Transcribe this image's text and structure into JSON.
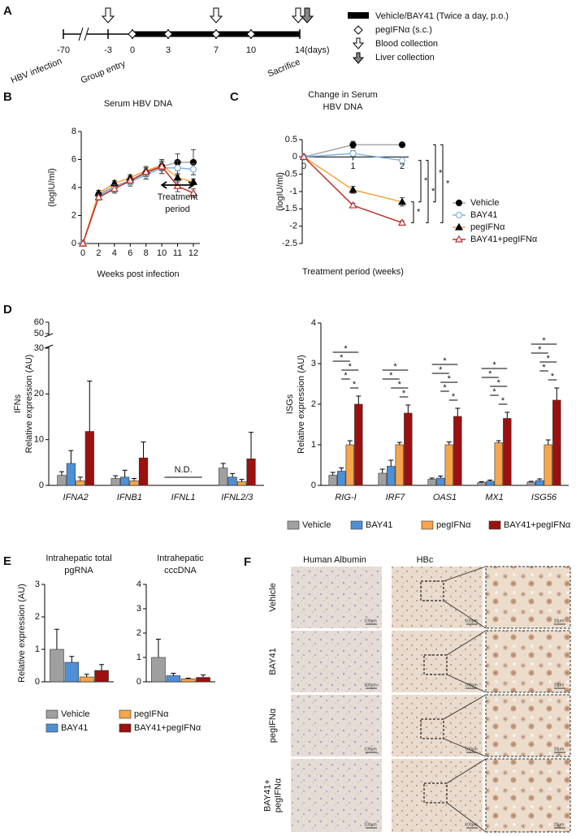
{
  "timeline": {
    "label": "A",
    "ticks": [
      -70,
      -3,
      0,
      3,
      7,
      10,
      14
    ],
    "unit": "(days)",
    "events": [
      "HBV infection",
      "Group entry",
      "Sacrifice"
    ],
    "legend": [
      "Vehicle/BAY41 (Twice a day, p.o.)",
      "pegIFNα (s.c.)",
      "Blood collection",
      "Liver collection"
    ]
  },
  "chart_data": [
    {
      "type": "line",
      "label": "B",
      "title": [
        "Serum HBV DNA"
      ],
      "y_label": [
        "(logIU/ml)"
      ],
      "x_label": "Weeks post infection",
      "categories": [
        "0",
        "2",
        "4",
        "6",
        "8",
        "10",
        "11",
        "12"
      ],
      "ylim": [
        0,
        8
      ],
      "yticks": [
        0,
        2,
        4,
        6,
        8
      ],
      "annotation": [
        "Treatment",
        "period"
      ],
      "series": [
        {
          "color": "#a6a6a6",
          "marker": "filled-circle",
          "values": [
            0,
            3.5,
            4.1,
            4.5,
            5.0,
            5.5,
            5.8,
            5.8
          ],
          "errors": [
            0,
            0.3,
            0.3,
            0.3,
            0.4,
            0.5,
            0.6,
            0.9
          ]
        },
        {
          "color": "#7fb2e5",
          "marker": "open-circle",
          "values": [
            0,
            3.4,
            4.0,
            4.4,
            4.9,
            5.4,
            5.4,
            5.3
          ],
          "errors": [
            0,
            0.3,
            0.3,
            0.3,
            0.3,
            0.4,
            0.5,
            0.4
          ]
        },
        {
          "color": "#f3a540",
          "marker": "filled-triangle",
          "values": [
            0,
            3.6,
            4.3,
            4.7,
            5.2,
            5.6,
            4.7,
            4.4
          ],
          "errors": [
            0,
            0.2,
            0.2,
            0.2,
            0.3,
            0.3,
            0.3,
            0.2
          ]
        },
        {
          "color": "#c0302a",
          "marker": "open-triangle",
          "values": [
            0,
            3.3,
            3.9,
            4.5,
            5.1,
            5.5,
            4.1,
            3.6
          ],
          "errors": [
            0,
            0.2,
            0.3,
            0.2,
            0.3,
            0.3,
            0.4,
            0.3
          ]
        }
      ]
    },
    {
      "type": "line",
      "label": "C",
      "title": [
        "Change in Serum",
        "HBV DNA"
      ],
      "y_label": [
        "(logIU/ml)"
      ],
      "x_label": "Treatment period (weeks)",
      "categories": [
        "0",
        "1",
        "2"
      ],
      "ylim": [
        -2.5,
        0.5
      ],
      "yticks": [
        -2.5,
        -2,
        -1.5,
        -1,
        -0.5,
        0,
        0.5
      ],
      "legend": "right",
      "significance": [
        {
          "pair": [
            2,
            3
          ],
          "label": "*"
        },
        {
          "pair": [
            1,
            2
          ],
          "label": "*"
        },
        {
          "pair": [
            1,
            3
          ],
          "label": "*"
        },
        {
          "pair": [
            0,
            2
          ],
          "label": "*"
        },
        {
          "pair": [
            0,
            3
          ],
          "label": "*"
        }
      ],
      "series": [
        {
          "name": "Vehicle",
          "color": "#a6a6a6",
          "marker": "filled-circle",
          "values": [
            0,
            0.35,
            0.35
          ],
          "errors": [
            0,
            0.1,
            0.06
          ]
        },
        {
          "name": "BAY41",
          "color": "#7fb2e5",
          "marker": "open-circle",
          "values": [
            0,
            0.1,
            -0.1
          ],
          "errors": [
            0,
            0.08,
            0.1
          ]
        },
        {
          "name": "pegIFNα",
          "color": "#f3a540",
          "marker": "filled-triangle",
          "values": [
            0,
            -0.95,
            -1.3
          ],
          "errors": [
            0,
            0.1,
            0.12
          ]
        },
        {
          "name": "BAY41+pegIFNα",
          "color": "#c0302a",
          "marker": "open-triangle",
          "values": [
            0,
            -1.4,
            -1.9
          ],
          "errors": [
            0,
            0.06,
            0.05
          ]
        }
      ]
    },
    {
      "type": "bar",
      "label": "D",
      "y_label": [
        "IFNs",
        "Relative expression (AU)"
      ],
      "categories": [
        "IFNA2",
        "IFNB1",
        "IFNL1",
        "IFNL2/3"
      ],
      "italic_categories": true,
      "ylim": [
        0,
        60
      ],
      "yticks": [
        0,
        10,
        20,
        30,
        50,
        60
      ],
      "ybreak": [
        30,
        50
      ],
      "nd_label": "N.D.",
      "series": [
        {
          "color": "#a0a0a0",
          "values": [
            2.2,
            1.5,
            null,
            3.8
          ],
          "errors": [
            0.8,
            0.6,
            null,
            1.0
          ]
        },
        {
          "color": "#4e8fd6",
          "values": [
            4.8,
            1.8,
            null,
            1.8
          ],
          "errors": [
            2.8,
            1.5,
            null,
            0.8
          ]
        },
        {
          "color": "#f6a54a",
          "values": [
            1.0,
            1.0,
            null,
            0.8
          ],
          "errors": [
            0.8,
            0.5,
            null,
            0.5
          ]
        },
        {
          "color": "#9c1010",
          "values": [
            11.8,
            6.0,
            null,
            5.8
          ],
          "errors": [
            11.0,
            3.5,
            null,
            5.8
          ]
        }
      ]
    },
    {
      "type": "bar",
      "y_label": [
        "ISGs",
        "Relative expression (AU)"
      ],
      "categories": [
        "RIG-I",
        "IRF7",
        "OAS1",
        "MX1",
        "ISG56"
      ],
      "italic_categories": true,
      "ylim": [
        0,
        4
      ],
      "yticks": [
        0,
        1,
        2,
        3,
        4
      ],
      "significance": [
        [
          {
            "pair": [
              0,
              3
            ],
            "label": "*"
          },
          {
            "pair": [
              0,
              2
            ],
            "label": "*"
          },
          {
            "pair": [
              1,
              3
            ],
            "label": "*"
          },
          {
            "pair": [
              1,
              2
            ],
            "label": "*"
          },
          {
            "pair": [
              2,
              3
            ],
            "label": "*"
          }
        ],
        [
          {
            "pair": [
              0,
              3
            ],
            "label": "*"
          },
          {
            "pair": [
              0,
              2
            ],
            "label": "*"
          },
          {
            "pair": [
              1,
              3
            ],
            "label": "*"
          },
          {
            "pair": [
              2,
              3
            ],
            "label": "*"
          }
        ],
        [
          {
            "pair": [
              0,
              3
            ],
            "label": "*"
          },
          {
            "pair": [
              0,
              2
            ],
            "label": "*"
          },
          {
            "pair": [
              1,
              3
            ],
            "label": "*"
          },
          {
            "pair": [
              1,
              2
            ],
            "label": "*"
          },
          {
            "pair": [
              2,
              3
            ],
            "label": "*"
          }
        ],
        [
          {
            "pair": [
              0,
              3
            ],
            "label": "*"
          },
          {
            "pair": [
              0,
              2
            ],
            "label": "*"
          },
          {
            "pair": [
              1,
              3
            ],
            "label": "*"
          },
          {
            "pair": [
              1,
              2
            ],
            "label": "*"
          },
          {
            "pair": [
              2,
              3
            ],
            "label": "*"
          }
        ],
        [
          {
            "pair": [
              0,
              3
            ],
            "label": "*"
          },
          {
            "pair": [
              0,
              2
            ],
            "label": "*"
          },
          {
            "pair": [
              1,
              3
            ],
            "label": "*"
          },
          {
            "pair": [
              1,
              2
            ],
            "label": "*"
          },
          {
            "pair": [
              2,
              3
            ],
            "label": "*"
          }
        ]
      ],
      "series": [
        {
          "name": "Vehicle",
          "color": "#a0a0a0",
          "values": [
            0.25,
            0.3,
            0.15,
            0.07,
            0.08
          ],
          "errors": [
            0.07,
            0.1,
            0.03,
            0.02,
            0.02
          ]
        },
        {
          "name": "BAY41",
          "color": "#4e8fd6",
          "values": [
            0.35,
            0.47,
            0.18,
            0.1,
            0.12
          ],
          "errors": [
            0.08,
            0.15,
            0.05,
            0.03,
            0.04
          ]
        },
        {
          "name": "pegIFNα",
          "color": "#f6a54a",
          "values": [
            1.0,
            1.0,
            1.0,
            1.05,
            1.0
          ],
          "errors": [
            0.1,
            0.06,
            0.07,
            0.05,
            0.12
          ]
        },
        {
          "name": "BAY41+pegIFNα",
          "color": "#9c1010",
          "values": [
            2.0,
            1.78,
            1.7,
            1.65,
            2.1
          ],
          "errors": [
            0.2,
            0.2,
            0.2,
            0.15,
            0.3
          ]
        }
      ]
    },
    {
      "type": "bar",
      "label": "E",
      "title": [
        "Intrahepatic total",
        "pgRNA"
      ],
      "y_label": [
        "Relative expression (AU)"
      ],
      "categories": [
        null
      ],
      "ylim": [
        0,
        3
      ],
      "yticks": [
        0,
        1,
        2,
        3
      ],
      "series": [
        {
          "name": "Vehicle",
          "color": "#a0a0a0",
          "values": [
            1.0
          ],
          "errors": [
            0.62
          ]
        },
        {
          "name": "BAY41",
          "color": "#4e8fd6",
          "values": [
            0.6
          ],
          "errors": [
            0.18
          ]
        },
        {
          "name": "pegIFNα",
          "color": "#f6a54a",
          "values": [
            0.15
          ],
          "errors": [
            0.08
          ]
        },
        {
          "name": "BAY41+pegIFNα",
          "color": "#9c1010",
          "values": [
            0.35
          ],
          "errors": [
            0.18
          ]
        }
      ]
    },
    {
      "type": "bar",
      "title": [
        "Intrahepatic",
        "cccDNA"
      ],
      "categories": [
        null
      ],
      "ylim": [
        0,
        4
      ],
      "yticks": [
        0,
        1,
        2,
        3,
        4
      ],
      "series": [
        {
          "color": "#a0a0a0",
          "values": [
            1.0
          ],
          "errors": [
            0.75
          ]
        },
        {
          "color": "#4e8fd6",
          "values": [
            0.25
          ],
          "errors": [
            0.1
          ]
        },
        {
          "color": "#f6a54a",
          "values": [
            0.12
          ],
          "errors": [
            0.03
          ]
        },
        {
          "color": "#9c1010",
          "values": [
            0.18
          ],
          "errors": [
            0.1
          ]
        }
      ]
    }
  ],
  "histology": {
    "label": "F",
    "columns": [
      "Human Albumin",
      "HBc"
    ],
    "rows": [
      [
        "Vehicle"
      ],
      [
        "BAY41"
      ],
      [
        "pegIFNα"
      ],
      [
        "BAY41+",
        "pegIFNα"
      ]
    ],
    "scale_bars": [
      "100μm",
      "20μm"
    ]
  }
}
